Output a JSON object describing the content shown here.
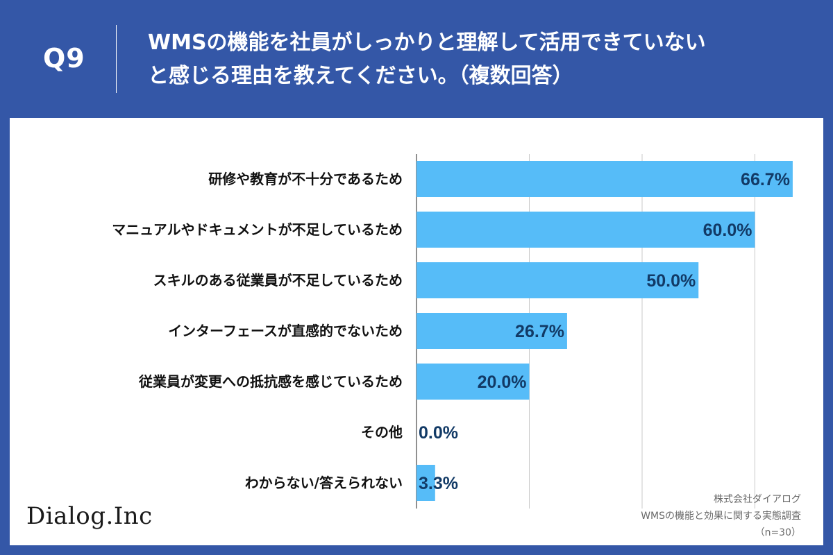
{
  "header": {
    "question_number": "Q9",
    "question_line1": "WMSの機能を社員がしっかりと理解して活用できていない",
    "question_line2": "と感じる理由を教えてください。（複数回答）"
  },
  "chart_data": {
    "type": "bar",
    "orientation": "horizontal",
    "categories": [
      "研修や教育が不十分であるため",
      "マニュアルやドキュメントが不足しているため",
      "スキルのある従業員が不足しているため",
      "インターフェースが直感的でないため",
      "従業員が変更への抵抗感を感じているため",
      "その他",
      "わからない/答えられない"
    ],
    "values": [
      66.7,
      60.0,
      50.0,
      26.7,
      20.0,
      0.0,
      3.3
    ],
    "value_labels": [
      "66.7%",
      "60.0%",
      "50.0%",
      "26.7%",
      "20.0%",
      "0.0%",
      "3.3%"
    ],
    "xlim": [
      0,
      80
    ],
    "grid_step": 20,
    "grid": true,
    "bar_color": "#56bcf8",
    "label_color": "#123a66"
  },
  "footer": {
    "logo": "Dialog.Inc",
    "source_company": "株式会社ダイアログ",
    "source_survey": "WMSの機能と効果に関する実態調査",
    "sample_size": "（n=30）"
  }
}
